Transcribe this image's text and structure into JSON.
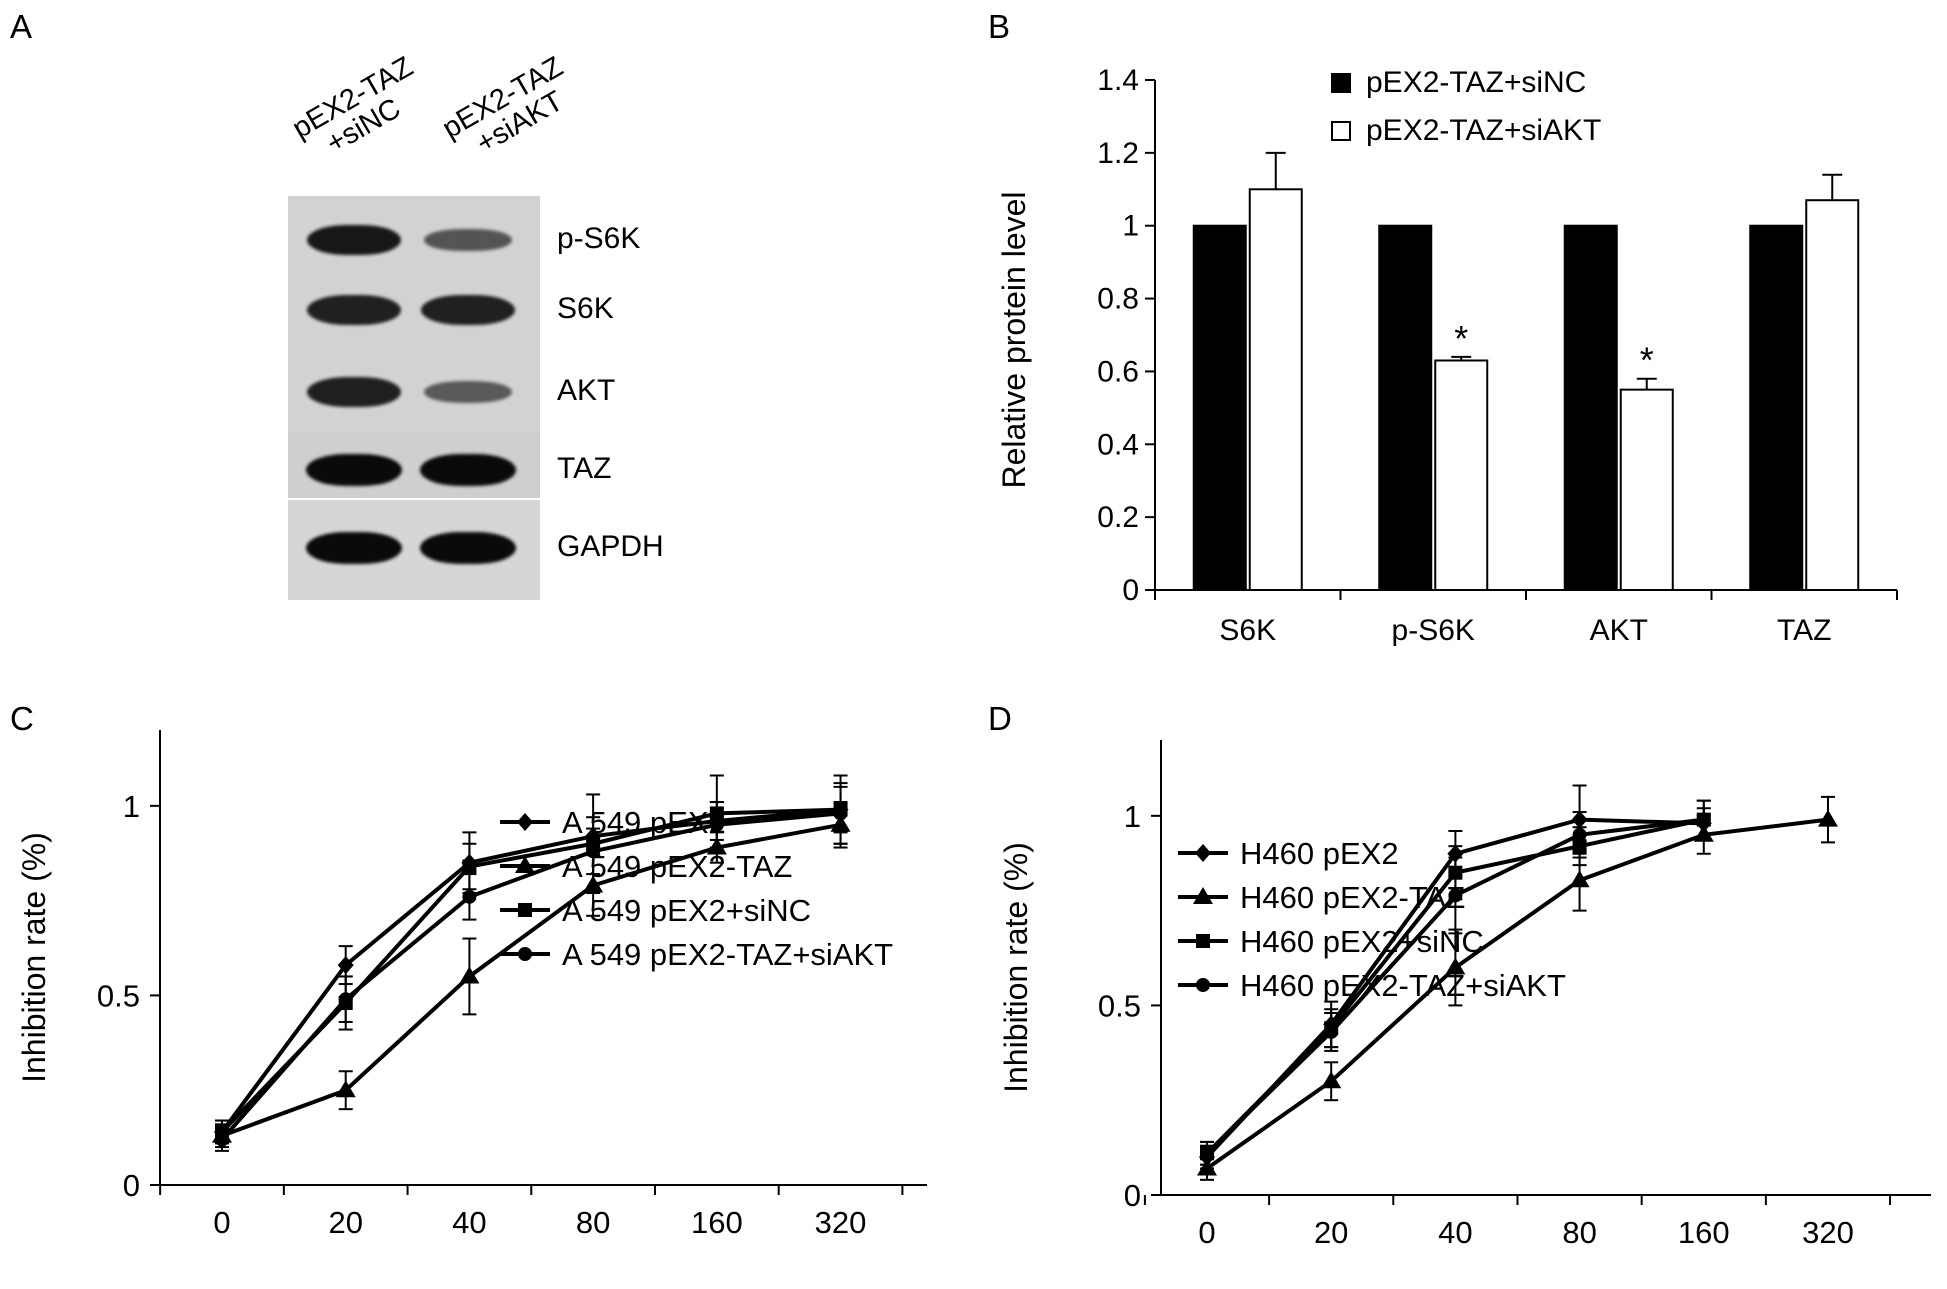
{
  "panelA": {
    "letter": "A",
    "column_labels": [
      {
        "line1": "pEX2-TAZ",
        "line2": "+siNC"
      },
      {
        "line1": "pEX2-TAZ",
        "line2": "+siAKT"
      }
    ],
    "blots": [
      {
        "label": "p-S6K",
        "intensities": [
          0.9,
          0.45
        ]
      },
      {
        "label": "S6K",
        "intensities": [
          0.85,
          0.85
        ]
      },
      {
        "label": "AKT",
        "intensities": [
          0.85,
          0.4
        ]
      },
      {
        "label": "TAZ",
        "intensities": [
          1.0,
          1.0
        ]
      },
      {
        "label": "GAPDH",
        "intensities": [
          1.0,
          1.0
        ]
      }
    ]
  },
  "chart_data": [
    {
      "panel": "B",
      "type": "bar",
      "categories": [
        "S6K",
        "p-S6K",
        "AKT",
        "TAZ"
      ],
      "series": [
        {
          "name": "pEX2-TAZ+siNC",
          "values": [
            1.0,
            1.0,
            1.0,
            1.0
          ],
          "errors": [
            0,
            0,
            0,
            0
          ],
          "fill": "#000000"
        },
        {
          "name": "pEX2-TAZ+siAKT",
          "values": [
            1.1,
            0.63,
            0.55,
            1.07
          ],
          "errors": [
            0.1,
            0.01,
            0.03,
            0.07
          ],
          "fill": "#ffffff"
        }
      ],
      "significance": [
        "",
        "*",
        "*",
        ""
      ],
      "ylabel": "Relative protein level",
      "ylim": [
        0,
        1.4
      ],
      "yticks": [
        "0",
        "0.2",
        "0.4",
        "0.6",
        "0.8",
        "1",
        "1.2",
        "1.4"
      ],
      "legend_position": "top-right"
    },
    {
      "panel": "C",
      "type": "line",
      "x": [
        "0",
        "20",
        "40",
        "80",
        "160",
        "320"
      ],
      "ylabel": "Inhibition rate (%)",
      "ylim": [
        0,
        1.2
      ],
      "yticks": [
        "0",
        "0.5",
        "1"
      ],
      "legend_position": "bottom-right",
      "series": [
        {
          "name": "A 549 pEX2",
          "marker": "diamond",
          "values": [
            0.14,
            0.58,
            0.85,
            0.92,
            0.96,
            0.99
          ],
          "errors": [
            0.03,
            0.05,
            0.08,
            0.05,
            0.05,
            0.06
          ]
        },
        {
          "name": "A 549 pEX2-TAZ",
          "marker": "triangle",
          "values": [
            0.13,
            0.25,
            0.55,
            0.79,
            0.89,
            0.95
          ],
          "errors": [
            0.03,
            0.05,
            0.1,
            0.08,
            0.04,
            0.06
          ]
        },
        {
          "name": "A 549 pEX2+siNC",
          "marker": "square",
          "values": [
            0.14,
            0.48,
            0.84,
            0.9,
            0.98,
            0.99
          ],
          "errors": [
            0.03,
            0.07,
            0.06,
            0.13,
            0.1,
            0.09
          ]
        },
        {
          "name": "A 549 pEX2-TAZ+siAKT",
          "marker": "circle",
          "values": [
            0.12,
            0.49,
            0.76,
            0.88,
            0.95,
            0.98
          ],
          "errors": [
            0.03,
            0.06,
            0.06,
            0.06,
            0.06,
            0.08
          ]
        }
      ]
    },
    {
      "panel": "D",
      "type": "line",
      "x": [
        "0",
        "20",
        "40",
        "80",
        "160",
        "320"
      ],
      "ylabel": "Inhibition rate (%)",
      "ylim": [
        0,
        1.2
      ],
      "yticks": [
        "0",
        "0.5",
        "1"
      ],
      "legend_position": "bottom-right",
      "series": [
        {
          "name": "H460 pEX2",
          "marker": "diamond",
          "values": [
            0.1,
            0.45,
            0.9,
            0.99,
            0.98,
            null
          ],
          "errors": [
            0.03,
            0.06,
            0.06,
            0.09,
            0.04,
            0
          ]
        },
        {
          "name": "H460 pEX2-TAZ",
          "marker": "triangle",
          "values": [
            0.07,
            0.3,
            0.6,
            0.83,
            0.95,
            0.99
          ],
          "errors": [
            0.03,
            0.05,
            0.1,
            0.08,
            0.05,
            0.06
          ]
        },
        {
          "name": "H460 pEX2+siNC",
          "marker": "square",
          "values": [
            0.11,
            0.44,
            0.85,
            0.92,
            0.99,
            null
          ],
          "errors": [
            0.03,
            0.05,
            0.07,
            0.05,
            0.05,
            0
          ]
        },
        {
          "name": "H460 pEX2-TAZ+siAKT",
          "marker": "circle",
          "values": [
            0.11,
            0.43,
            0.79,
            0.95,
            0.99,
            null
          ],
          "errors": [
            0.03,
            0.05,
            0.1,
            0.06,
            0.05,
            0
          ]
        }
      ]
    }
  ]
}
